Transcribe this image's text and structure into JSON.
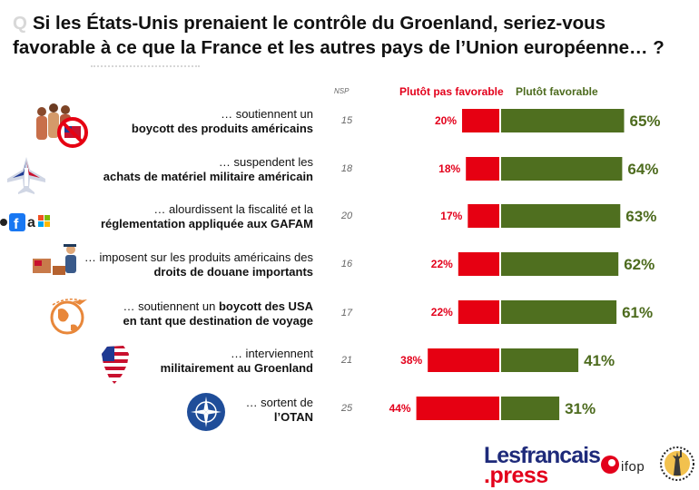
{
  "title": {
    "marker": "Q",
    "text": "Si les États-Unis prenaient le contrôle du Groenland, seriez-vous favorable à ce que la France et les autres pays de l’Union européenne… ?"
  },
  "legend": {
    "nsp_header": "NSP",
    "negative": "Plutôt pas favorable",
    "positive": "Plutôt favorable"
  },
  "rows": [
    {
      "line1": "… soutiennent un",
      "line1_bold": "",
      "line2": "boycott des produits américains",
      "icon": "boycott-people-icon",
      "nsp": "15"
    },
    {
      "line1": "… suspendent les",
      "line1_bold": "",
      "line2": "achats de matériel militaire américain",
      "icon": "fighter-jet-icon",
      "nsp": "18"
    },
    {
      "line1": "… alourdissent la fiscalité et la",
      "line1_bold": "",
      "line2": "réglementation appliquée aux GAFAM",
      "icon": "gafam-logos-icon",
      "nsp": "20"
    },
    {
      "line1": "… imposent sur les produits américains des",
      "line1_bold": "",
      "line2": "droits de douane importants",
      "icon": "customs-officer-icon",
      "nsp": "16"
    },
    {
      "line1": "… soutiennent un ",
      "line1_bold": "boycott des USA",
      "line2": "en tant que destination de voyage",
      "icon": "globe-plane-icon",
      "nsp": "17"
    },
    {
      "line1": "… interviennent",
      "line1_bold": "",
      "line2": "militairement au Groenland",
      "icon": "greenland-flag-map-icon",
      "nsp": "21"
    },
    {
      "line1": "… sortent de",
      "line1_bold": "",
      "line2": "l’OTAN",
      "icon": "nato-emblem-icon",
      "nsp": "25"
    }
  ],
  "chart_data": {
    "type": "bar",
    "orientation": "horizontal-diverging",
    "categories": [
      "boycott des produits américains",
      "achats de matériel militaire américain",
      "réglementation appliquée aux GAFAM",
      "droits de douane importants",
      "boycott des USA en tant que destination de voyage",
      "militairement au Groenland",
      "l’OTAN"
    ],
    "series": [
      {
        "name": "Plutôt pas favorable",
        "values": [
          20,
          18,
          17,
          22,
          22,
          38,
          44
        ],
        "color": "#e60012"
      },
      {
        "name": "Plutôt favorable",
        "values": [
          65,
          64,
          63,
          62,
          61,
          41,
          31
        ],
        "color": "#4f6f1f"
      }
    ],
    "nsp": [
      15,
      18,
      20,
      16,
      17,
      21,
      25
    ],
    "value_suffix": "%",
    "legend_position": "top"
  },
  "branding": {
    "logo_line1": "Lesfrancais",
    "logo_line2": ".press",
    "ifop": "ifop"
  }
}
